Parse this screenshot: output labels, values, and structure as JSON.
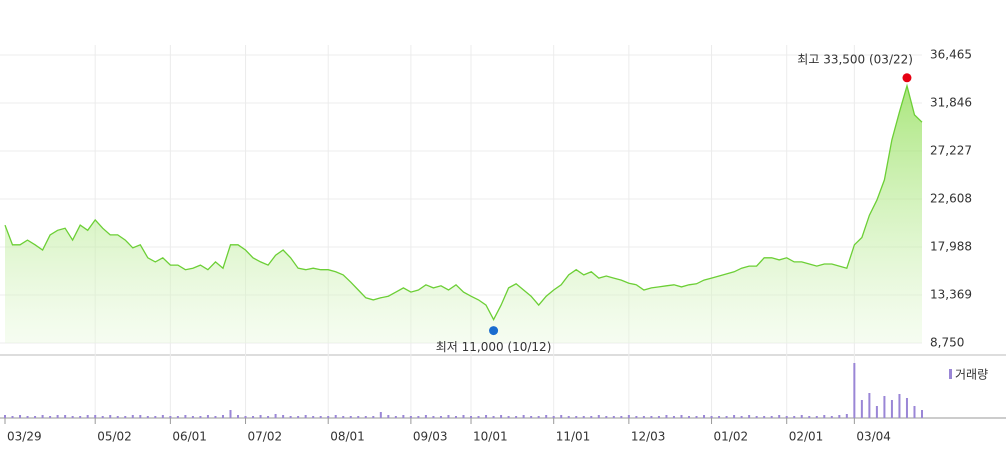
{
  "chart_data": {
    "type": "line",
    "categories": [
      "03/29",
      null,
      null,
      null,
      null,
      null,
      null,
      null,
      null,
      null,
      null,
      null,
      "05/02",
      null,
      null,
      null,
      null,
      null,
      null,
      null,
      null,
      null,
      "06/01",
      null,
      null,
      null,
      null,
      null,
      null,
      null,
      null,
      null,
      "07/02",
      null,
      null,
      null,
      null,
      null,
      null,
      null,
      null,
      null,
      null,
      "08/01",
      null,
      null,
      null,
      null,
      null,
      null,
      null,
      null,
      null,
      null,
      "09/03",
      null,
      null,
      null,
      null,
      null,
      null,
      null,
      "10/01",
      null,
      null,
      null,
      null,
      null,
      null,
      null,
      null,
      null,
      null,
      "11/01",
      null,
      null,
      null,
      null,
      null,
      null,
      null,
      null,
      null,
      "12/03",
      null,
      null,
      null,
      null,
      null,
      null,
      null,
      null,
      null,
      null,
      "01/02",
      null,
      null,
      null,
      null,
      null,
      null,
      null,
      null,
      null,
      "02/01",
      null,
      null,
      null,
      null,
      null,
      null,
      null,
      null,
      "03/04",
      null,
      null,
      null,
      null,
      null,
      null,
      null,
      null,
      null
    ],
    "series": [
      {
        "color": "#6ccf36",
        "values": [
          20100,
          18200,
          18200,
          18650,
          18200,
          17700,
          19150,
          19600,
          19800,
          18650,
          20100,
          19600,
          20600,
          19800,
          19150,
          19150,
          18650,
          17900,
          18200,
          16950,
          16550,
          16950,
          16250,
          16250,
          15800,
          15950,
          16250,
          15800,
          16550,
          15950,
          18200,
          18200,
          17700,
          16950,
          16550,
          16250,
          17200,
          17700,
          16950,
          15950,
          15800,
          15950,
          15800,
          15800,
          15600,
          15300,
          14600,
          13850,
          13100,
          12900,
          13100,
          13250,
          13650,
          14050,
          13650,
          13850,
          14350,
          14050,
          14250,
          13850,
          14350,
          13650,
          13250,
          12900,
          12400,
          11000,
          12400,
          14050,
          14450,
          13850,
          13250,
          12400,
          13250,
          13850,
          14350,
          15300,
          15800,
          15300,
          15600,
          15000,
          15200,
          15000,
          14800,
          14500,
          14350,
          13850,
          14050,
          14150,
          14250,
          14350,
          14150,
          14350,
          14450,
          14800,
          15000,
          15200,
          15400,
          15600,
          15950,
          16150,
          16150,
          16950,
          16950,
          16750,
          16950,
          16550,
          16550,
          16350,
          16150,
          16350,
          16350,
          16150,
          15950,
          18200,
          18900,
          21050,
          22500,
          24450,
          28300,
          31000,
          33500,
          30700,
          30000
        ]
      }
    ],
    "volume": {
      "name": "거래량",
      "color": "#9a86d6",
      "values": [
        3,
        2,
        3,
        2,
        2,
        3,
        2,
        3,
        3,
        2,
        2,
        3,
        3,
        2,
        3,
        2,
        2,
        3,
        3,
        2,
        2,
        3,
        2,
        2,
        3,
        2,
        2,
        3,
        2,
        3,
        8,
        3,
        2,
        2,
        3,
        2,
        4,
        3,
        2,
        2,
        3,
        2,
        2,
        2,
        3,
        2,
        2,
        2,
        2,
        2,
        6,
        3,
        2,
        3,
        2,
        2,
        3,
        2,
        2,
        3,
        2,
        3,
        2,
        2,
        3,
        2,
        3,
        2,
        2,
        3,
        2,
        2,
        3,
        2,
        3,
        2,
        2,
        2,
        2,
        3,
        2,
        2,
        2,
        3,
        2,
        2,
        2,
        2,
        3,
        2,
        3,
        2,
        2,
        3,
        2,
        2,
        2,
        3,
        2,
        3,
        2,
        2,
        2,
        3,
        2,
        2,
        3,
        2,
        2,
        3,
        2,
        3,
        4,
        55,
        18,
        25,
        12,
        22,
        18,
        24,
        20,
        12,
        8
      ]
    },
    "ylim": [
      8750,
      36465
    ],
    "yticks": [
      {
        "value": 8750,
        "label": "8,750"
      },
      {
        "value": 13369,
        "label": "13,369"
      },
      {
        "value": 17988,
        "label": "17,988"
      },
      {
        "value": 22608,
        "label": "22,608"
      },
      {
        "value": 27227,
        "label": "27,227"
      },
      {
        "value": 31846,
        "label": "31,846"
      },
      {
        "value": 36465,
        "label": "36,465"
      }
    ],
    "grid": true,
    "annotations": {
      "high": "최고 33,500 (03/22)",
      "high_color": "#e60012",
      "low": "최저 11,000 (10/12)",
      "low_color": "#1a6ccf"
    }
  }
}
